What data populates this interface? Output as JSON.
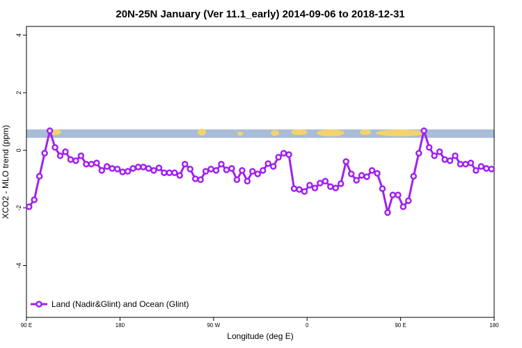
{
  "chart_data": {
    "type": "line",
    "title": "20N-25N January (Ver 11.1_early)   2014-09-06 to 2018-12-31",
    "x_label": "Longitude (deg E)",
    "y_label": "XCO2 - MLO trend (ppm)",
    "xlim": [
      90,
      540
    ],
    "ylim": [
      -5.8,
      4.3
    ],
    "xticks": [
      {
        "value": 90,
        "label": "90 E"
      },
      180,
      {
        "value": 270,
        "label": "90 W"
      },
      {
        "value": 360,
        "label": "0"
      },
      {
        "value": 450,
        "label": "90 E"
      },
      {
        "value": 540,
        "label": "180"
      }
    ],
    "yticks": [
      4,
      2,
      0,
      -2,
      -4
    ],
    "legend": "bottom-left",
    "x": [
      92.5,
      97.5,
      102.5,
      107.5,
      112.5,
      117.5,
      122.5,
      127.5,
      132.5,
      137.5,
      142.5,
      147.5,
      152.5,
      157.5,
      162.5,
      167.5,
      172.5,
      177.5,
      182.5,
      187.5,
      192.5,
      197.5,
      202.5,
      207.5,
      212.5,
      217.5,
      222.5,
      227.5,
      232.5,
      237.5,
      242.5,
      247.5,
      252.5,
      257.5,
      262.5,
      267.5,
      272.5,
      277.5,
      282.5,
      287.5,
      292.5,
      297.5,
      302.5,
      307.5,
      312.5,
      317.5,
      322.5,
      327.5,
      332.5,
      337.5,
      342.5,
      347.5,
      352.5,
      357.5,
      362.5,
      367.5,
      372.5,
      377.5,
      382.5,
      387.5,
      392.5,
      397.5,
      402.5,
      407.5,
      412.5,
      417.5,
      422.5,
      427.5,
      432.5,
      437.5,
      442.5,
      447.5,
      452.5,
      457.5,
      462.5,
      467.5,
      472.5,
      477.5,
      482.5,
      487.5,
      492.5,
      497.5,
      502.5,
      507.5,
      512.5,
      517.5,
      522.5,
      527.5,
      532.5,
      537.5
    ],
    "series": [
      {
        "name": "Land (Nadir&Glint) and Ocean (Glint)",
        "color": "#a020f0",
        "values": [
          -1.96,
          -1.72,
          -0.9,
          -0.1,
          0.68,
          0.1,
          -0.19,
          -0.05,
          -0.32,
          -0.36,
          -0.19,
          -0.48,
          -0.48,
          -0.44,
          -0.7,
          -0.56,
          -0.63,
          -0.65,
          -0.75,
          -0.73,
          -0.63,
          -0.58,
          -0.58,
          -0.63,
          -0.7,
          -0.61,
          -0.78,
          -0.78,
          -0.78,
          -0.87,
          -0.48,
          -0.65,
          -0.99,
          -1.02,
          -0.73,
          -0.65,
          -0.7,
          -0.48,
          -0.68,
          -0.63,
          -1.02,
          -0.7,
          -1.07,
          -0.73,
          -0.82,
          -0.7,
          -0.46,
          -0.56,
          -0.24,
          -0.1,
          -0.15,
          -1.33,
          -1.36,
          -1.43,
          -1.21,
          -1.31,
          -1.14,
          -1.07,
          -1.26,
          -1.31,
          -1.16,
          -0.39,
          -0.82,
          -1.04,
          -0.87,
          -0.92,
          -0.7,
          -0.8,
          -1.33,
          -2.16,
          -1.55,
          -1.55,
          -1.96,
          -1.75,
          -0.9,
          -0.1,
          0.68,
          0.1,
          -0.19,
          -0.05,
          -0.32,
          -0.36,
          -0.19,
          -0.48,
          -0.48,
          -0.44,
          -0.7,
          -0.56,
          -0.63,
          -0.65
        ]
      }
    ]
  }
}
